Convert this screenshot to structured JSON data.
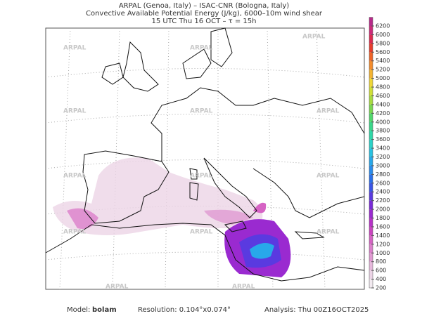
{
  "header": {
    "lines": [
      "ARPAL (Genoa, Italy)  –  ISAC-CNR (Bologna, Italy)",
      "Convective Available Potential Energy (J/kg), 6000–10m wind shear",
      "15 UTC Thu 16 OCT  –  τ = 15h"
    ]
  },
  "watermark": "ARPAL",
  "colorbar": {
    "ticks": [
      200,
      400,
      600,
      800,
      1000,
      1200,
      1400,
      1600,
      1800,
      2000,
      2200,
      2400,
      2600,
      2800,
      3000,
      3200,
      3400,
      3600,
      3800,
      4000,
      4200,
      4400,
      4600,
      4800,
      5000,
      5200,
      5400,
      5600,
      5800,
      6000,
      6200
    ],
    "colors": [
      "#f2eaf0",
      "#ecd4e6",
      "#e6b8dc",
      "#e09ad2",
      "#dc7fcb",
      "#d663c4",
      "#cc44c0",
      "#b832c8",
      "#9a2ad0",
      "#7a2ad8",
      "#5a3ae0",
      "#3a55e6",
      "#2a70ea",
      "#2a8cec",
      "#28a8ea",
      "#28c2e2",
      "#2ad2c8",
      "#2ed8a8",
      "#3ad88a",
      "#50d86c",
      "#7ad850",
      "#a8dc40",
      "#d0e038",
      "#f0d838",
      "#f4b432",
      "#f48c2c",
      "#f06428",
      "#e83c2c",
      "#dc2a50",
      "#cc2a7a",
      "#b82a8a"
    ]
  },
  "footer": {
    "model_label": "Model:",
    "model": "bolam",
    "resolution": "Resolution: 0.104°x0.074°",
    "analysis": "Analysis: Thu 00Z16OCT2025"
  }
}
